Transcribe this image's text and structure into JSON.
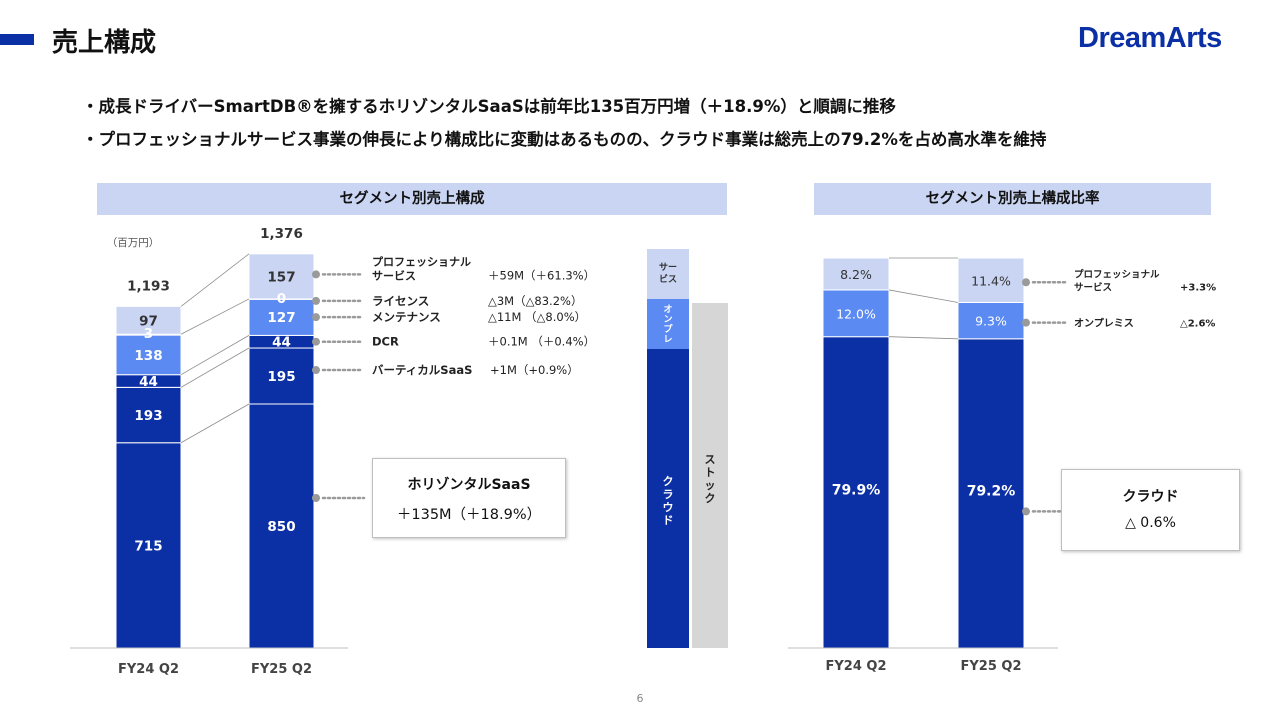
{
  "slide": {
    "title": "売上構成",
    "logo": "DreamArts",
    "page_number": "6",
    "bullets": [
      "・成長ドライバーSmartDB®を擁するホリゾンタルSaaSは前年比135百万円増（＋18.9%）と順調に推移",
      "・プロフェッショナルサービス事業の伸長により構成比に変動はあるものの、クラウド事業は総売上の79.2%を占め高水準を維持"
    ]
  },
  "colors": {
    "navy": "#0b2fa5",
    "mid_blue": "#5b8af2",
    "light_blue": "#c9d5f3",
    "stock_gray": "#d6d6d6"
  },
  "left_panel": {
    "header": "セグメント別売上構成",
    "unit": "（百万円）",
    "callout": {
      "line1": "ホリゾンタルSaaS",
      "line2": "＋135M（＋18.9%）"
    },
    "side_bar": {
      "service": "サービス",
      "onpre": "オンプレ",
      "cloud": "クラウド",
      "stock": "ストック"
    }
  },
  "right_panel": {
    "header": "セグメント別売上構成比率",
    "callout": {
      "line1": "クラウド",
      "line2": "△ 0.6%"
    }
  },
  "chart_data": [
    {
      "type": "bar",
      "stacked": true,
      "title": "セグメント別売上構成",
      "unit": "（百万円）",
      "categories": [
        "FY24 Q2",
        "FY25 Q2"
      ],
      "totals": [
        "1,193",
        "1,376"
      ],
      "series": [
        {
          "values": [
            715,
            850
          ]
        },
        {
          "values": [
            193,
            195
          ]
        },
        {
          "values": [
            44,
            44
          ]
        },
        {
          "values": [
            138,
            127
          ]
        },
        {
          "values": [
            3,
            0
          ]
        },
        {
          "values": [
            97,
            157
          ]
        }
      ],
      "annotations": [
        {
          "label": "プロフェッショナル\nサービス",
          "change": "＋59M（＋61.3%）"
        },
        {
          "label": "ライセンス",
          "change": "△3M（△83.2%）"
        },
        {
          "label": "メンテナンス",
          "change": "△11M （△8.0%）"
        },
        {
          "label": "DCR",
          "change": "＋0.1M （＋0.4%）"
        },
        {
          "label": "バーティカルSaaS",
          "change": "+1M（+0.9%）"
        }
      ]
    },
    {
      "type": "bar",
      "stacked": true,
      "title": "セグメント別売上構成比率",
      "categories": [
        "FY24 Q2",
        "FY25 Q2"
      ],
      "series": [
        {
          "values": [
            79.9,
            79.2
          ],
          "labels": [
            "79.9%",
            "79.2%"
          ]
        },
        {
          "values": [
            12.0,
            9.3
          ],
          "labels": [
            "12.0%",
            "9.3%"
          ]
        },
        {
          "values": [
            8.2,
            11.4
          ],
          "labels": [
            "8.2%",
            "11.4%"
          ]
        }
      ],
      "annotations": [
        {
          "label": "プロフェッショナル\nサービス",
          "change": "+3.3%"
        },
        {
          "label": "オンプレミス",
          "change": "△2.6%"
        }
      ]
    }
  ]
}
